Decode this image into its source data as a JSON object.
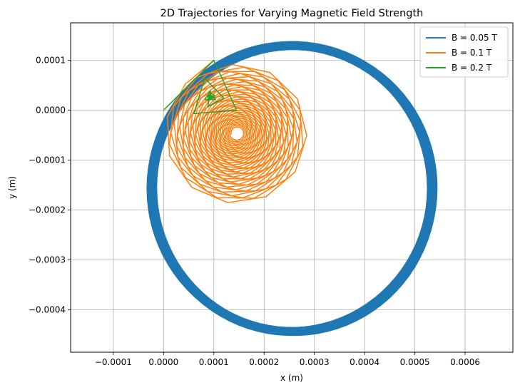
{
  "chart_data": {
    "type": "line",
    "title": "2D Trajectories for Varying Magnetic Field Strength",
    "xlabel": "x (m)",
    "ylabel": "y (m)",
    "xlim": [
      -0.000185,
      0.000695
    ],
    "ylim": [
      -0.000485,
      0.000175
    ],
    "grid": true,
    "legend": "top-right",
    "x_ticks": [
      -0.0001,
      0.0,
      0.0001,
      0.0002,
      0.0003,
      0.0004,
      0.0005,
      0.0006
    ],
    "x_tick_labels": [
      "−0.0001",
      "0.0000",
      "0.0001",
      "0.0002",
      "0.0003",
      "0.0004",
      "0.0005",
      "0.0006"
    ],
    "y_ticks": [
      0.0001,
      0.0,
      -0.0001,
      -0.0002,
      -0.0003,
      -0.0004
    ],
    "y_tick_labels": [
      "0.0001",
      "0.0000",
      "−0.0001",
      "−0.0002",
      "−0.0003",
      "−0.0004"
    ],
    "series": [
      {
        "name": "B = 0.05 T",
        "color": "#1f77b4",
        "shape": "circular orbit with drift",
        "center": [
          0.000256,
          -0.000157
        ],
        "radius": 0.000279,
        "extent_x": [
          -3.5e-05,
          0.000545
        ],
        "extent_y": [
          -0.00044,
          0.000133
        ]
      },
      {
        "name": "B = 0.1 T",
        "color": "#ff7f0e",
        "shape": "spiralling polygonal orbit",
        "center": [
          0.000146,
          -4.6e-05
        ],
        "radius_range": [
          1.2e-05,
          0.000143
        ],
        "extent_x": [
          0.0,
          0.0003
        ],
        "extent_y": [
          -0.000188,
          0.0001
        ]
      },
      {
        "name": "B = 0.2 T",
        "color": "#2ca02c",
        "shape": "spiralling triangular orbit",
        "x": [
          0.0,
          0.0001,
          0.000145,
          6e-05,
          8.2e-05,
          0.00012,
          8.8e-05,
          9.3e-05,
          0.000102,
          9.4e-05
        ],
        "y": [
          0.0,
          0.0001,
          0.0,
          -7e-06,
          6.4e-05,
          2.4e-05,
          7e-06,
          3.5e-05,
          2.9e-05,
          2.6e-05
        ]
      }
    ]
  }
}
